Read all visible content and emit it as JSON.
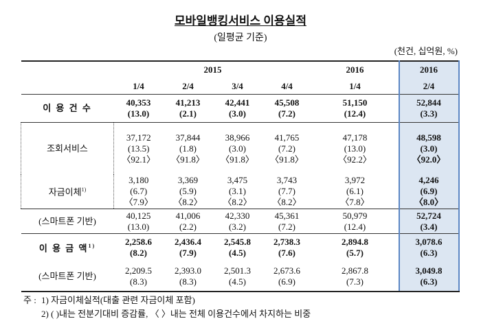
{
  "title": "모바일뱅킹서비스 이용실적",
  "subtitle": "(일평균 기준)",
  "unit": "(천건, 십억원, %)",
  "header": {
    "years": [
      "2015",
      "2016",
      "2016"
    ],
    "quarters": [
      "1/4",
      "2/4",
      "3/4",
      "4/4",
      "1/4",
      "2/4"
    ]
  },
  "rows": [
    {
      "label": "이 용 건 수",
      "cells": [
        [
          "40,353",
          "(13.0)"
        ],
        [
          "41,213",
          "(2.1)"
        ],
        [
          "42,441",
          "(3.0)"
        ],
        [
          "45,508",
          "(7.2)"
        ],
        [
          "51,150",
          "(12.4)"
        ],
        [
          "52,844",
          "(3.3)"
        ]
      ]
    },
    {
      "label": "조회서비스",
      "cells": [
        [
          "37,172",
          "(13.5)",
          "〈92.1〉"
        ],
        [
          "37,844",
          "(1.8)",
          "〈91.8〉"
        ],
        [
          "38,966",
          "(3.0)",
          "〈91.8〉"
        ],
        [
          "41,765",
          "(7.2)",
          "〈91.8〉"
        ],
        [
          "47,178",
          "(13.0)",
          "〈92.2〉"
        ],
        [
          "48,598",
          "(3.0)",
          "〈92.0〉"
        ]
      ]
    },
    {
      "label": "자금이체",
      "note": "1)",
      "cells": [
        [
          "3,180",
          "(6.7)",
          "〈7.9〉"
        ],
        [
          "3,369",
          "(5.9)",
          "〈8.2〉"
        ],
        [
          "3,475",
          "(3.1)",
          "〈8.2〉"
        ],
        [
          "3,743",
          "(7.7)",
          "〈8.2〉"
        ],
        [
          "3,972",
          "(6.1)",
          "〈7.8〉"
        ],
        [
          "4,246",
          "(6.9)",
          "〈8.0〉"
        ]
      ]
    },
    {
      "label": "(스마트폰 기반)",
      "cells": [
        [
          "40,125",
          "(13.0)"
        ],
        [
          "41,006",
          "(2.2)"
        ],
        [
          "42,330",
          "(3.2)"
        ],
        [
          "45,361",
          "(7.2)"
        ],
        [
          "50,979",
          "(12.4)"
        ],
        [
          "52,724",
          "(3.4)"
        ]
      ]
    },
    {
      "label": "이 용 금 액",
      "note": "1)",
      "cells": [
        [
          "2,258.6",
          "(8.2)"
        ],
        [
          "2,436.4",
          "(7.9)"
        ],
        [
          "2,545.8",
          "(4.5)"
        ],
        [
          "2,738.3",
          "(7.6)"
        ],
        [
          "2,894.8",
          "(5.7)"
        ],
        [
          "3,078.6",
          "(6.3)"
        ]
      ]
    },
    {
      "label": "(스마트폰 기반)",
      "cells": [
        [
          "2,209.5",
          "(8.3)"
        ],
        [
          "2,393.0",
          "(8.3)"
        ],
        [
          "2,501.3",
          "(4.5)"
        ],
        [
          "2,673.6",
          "(6.9)"
        ],
        [
          "2,867.8",
          "(7.3)"
        ],
        [
          "3,049.8",
          "(6.3)"
        ]
      ]
    }
  ],
  "notes": {
    "lead": "주 :",
    "items": [
      "1) 자금이체실적(대출 관련 자금이체 포함)",
      "2) (  )내는 전분기대비 증감률, 〈  〉내는 전체 이용건수에서 차지하는 비중"
    ]
  }
}
